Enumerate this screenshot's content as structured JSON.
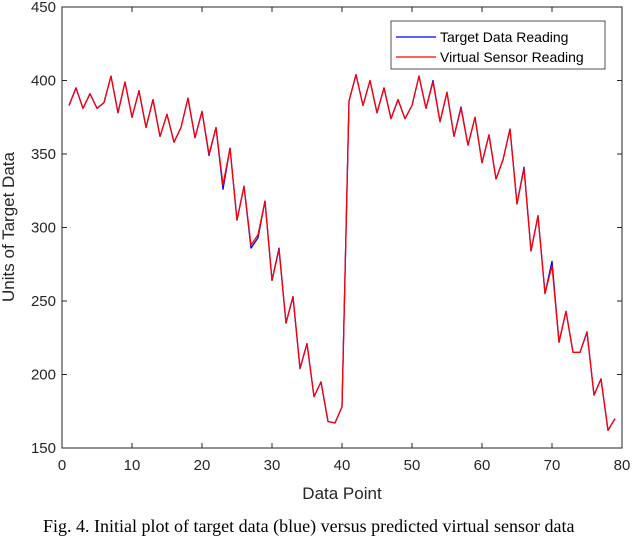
{
  "caption": "Fig. 4. Initial plot of target data (blue) versus predicted virtual sensor data",
  "chart_data": {
    "type": "line",
    "title": "",
    "xlabel": "Data Point",
    "ylabel": "Units of Target Data",
    "xlim": [
      0,
      80
    ],
    "ylim": [
      150,
      450
    ],
    "xticks": [
      0,
      10,
      20,
      30,
      40,
      50,
      60,
      70,
      80
    ],
    "yticks": [
      150,
      200,
      250,
      300,
      350,
      400,
      450
    ],
    "grid": false,
    "legend_position": "top-right",
    "x": [
      1,
      2,
      3,
      4,
      5,
      6,
      7,
      8,
      9,
      10,
      11,
      12,
      13,
      14,
      15,
      16,
      17,
      18,
      19,
      20,
      21,
      22,
      23,
      24,
      25,
      26,
      27,
      28,
      29,
      30,
      31,
      32,
      33,
      34,
      35,
      36,
      37,
      38,
      39,
      40,
      41,
      42,
      43,
      44,
      45,
      46,
      47,
      48,
      49,
      50,
      51,
      52,
      53,
      54,
      55,
      56,
      57,
      58,
      59,
      60,
      61,
      62,
      63,
      64,
      65,
      66,
      67,
      68,
      69,
      70,
      71,
      72,
      73,
      74,
      75,
      76,
      77,
      78,
      79
    ],
    "series": [
      {
        "name": "Target Data Reading",
        "color": "#0000ff",
        "values": [
          383,
          395,
          381,
          391,
          381,
          385,
          403,
          378,
          399,
          375,
          393,
          368,
          387,
          362,
          377,
          358,
          368,
          388,
          361,
          379,
          349,
          368,
          326,
          354,
          305,
          328,
          286,
          293,
          318,
          264,
          286,
          235,
          253,
          204,
          221,
          185,
          195,
          168,
          167,
          178,
          386,
          404,
          383,
          400,
          378,
          395,
          374,
          387,
          374,
          383,
          403,
          381,
          400,
          372,
          392,
          362,
          382,
          356,
          375,
          344,
          363,
          333,
          346,
          367,
          316,
          341,
          284,
          308,
          255,
          277,
          222,
          243,
          215,
          215,
          229,
          186,
          197,
          162,
          170
        ]
      },
      {
        "name": "Virtual Sensor Reading",
        "color": "#ff0000",
        "values": [
          383,
          395,
          381,
          391,
          381,
          385,
          403,
          378,
          399,
          375,
          393,
          368,
          387,
          362,
          377,
          358,
          368,
          388,
          361,
          379,
          350,
          368,
          329,
          354,
          305,
          328,
          288,
          295,
          318,
          264,
          285,
          235,
          253,
          204,
          221,
          185,
          195,
          168,
          167,
          178,
          386,
          404,
          383,
          400,
          378,
          395,
          374,
          387,
          374,
          383,
          403,
          381,
          399,
          372,
          392,
          362,
          381,
          356,
          375,
          344,
          363,
          333,
          346,
          367,
          316,
          340,
          284,
          308,
          255,
          274,
          222,
          243,
          215,
          215,
          229,
          186,
          197,
          162,
          170
        ]
      }
    ]
  }
}
